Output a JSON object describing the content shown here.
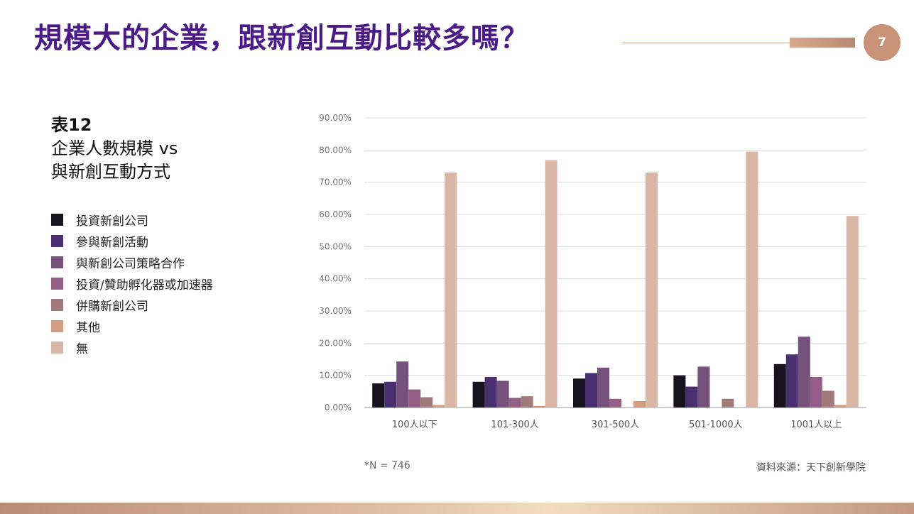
{
  "header": {
    "title": "規模大的企業，跟新創互動比較多嗎？",
    "page_number": "7",
    "accent_color": "#4b1a86"
  },
  "table_label": {
    "number": "表12",
    "line1": "企業人數規模 vs",
    "line2": "與新創互動方式"
  },
  "footer": {
    "note": "*N = 746",
    "source": "資料來源：天下創新學院"
  },
  "chart_data": {
    "type": "bar",
    "categories": [
      "100人以下",
      "101-300人",
      "301-500人",
      "501-1000人",
      "1001人以上"
    ],
    "ylim": [
      0,
      90
    ],
    "y_ticks": [
      "0.00%",
      "10.00%",
      "20.00%",
      "30.00%",
      "40.00%",
      "50.00%",
      "60.00%",
      "70.00%",
      "80.00%",
      "90.00%"
    ],
    "grid": true,
    "legend_position": "left",
    "series": [
      {
        "name": "投資新創公司",
        "color": "#17141f",
        "values": [
          7.5,
          8.0,
          9.0,
          10.0,
          13.5
        ]
      },
      {
        "name": "參與新創活動",
        "color": "#4a3070",
        "values": [
          8.0,
          9.5,
          10.7,
          6.5,
          16.5
        ]
      },
      {
        "name": "與新創公司策略合作",
        "color": "#75527c",
        "values": [
          14.3,
          8.3,
          12.4,
          12.7,
          22.0
        ]
      },
      {
        "name": "投資/贊助孵化器或加速器",
        "color": "#955e86",
        "values": [
          5.6,
          3.0,
          2.7,
          0,
          9.5
        ]
      },
      {
        "name": "併購新創公司",
        "color": "#a27a7c",
        "values": [
          3.2,
          3.5,
          0,
          2.7,
          5.2
        ]
      },
      {
        "name": "其他",
        "color": "#d29e82",
        "values": [
          0.8,
          0.5,
          2.0,
          0,
          0.8
        ]
      },
      {
        "name": "無",
        "color": "#d9b6a5",
        "values": [
          73.0,
          76.8,
          73.0,
          79.5,
          59.5
        ]
      }
    ]
  }
}
